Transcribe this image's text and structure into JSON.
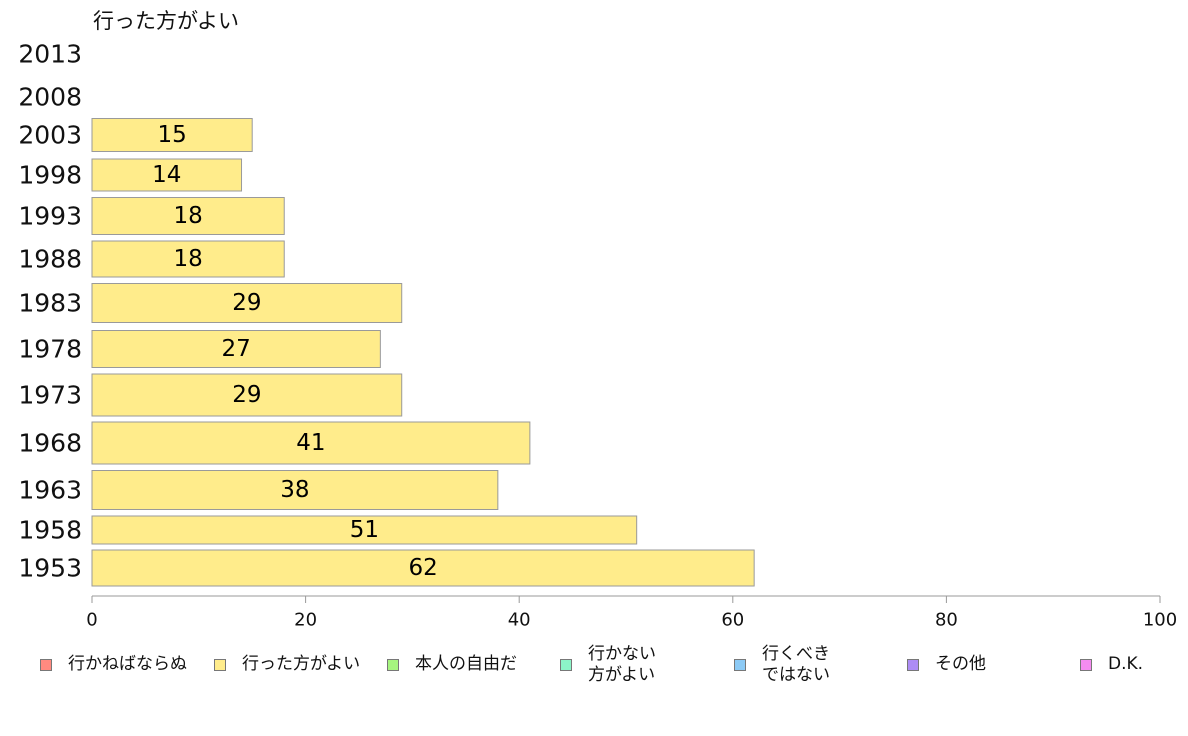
{
  "chart_data": {
    "type": "bar",
    "orientation": "horizontal",
    "series_title": "行った方がよい",
    "categories": [
      "2013",
      "2008",
      "2003",
      "1998",
      "1993",
      "1988",
      "1983",
      "1978",
      "1973",
      "1968",
      "1963",
      "1958",
      "1953"
    ],
    "series": [
      {
        "name": "行った方がよい",
        "color": "#ffec8b",
        "values": [
          null,
          null,
          15,
          14,
          18,
          18,
          29,
          27,
          29,
          41,
          38,
          51,
          62
        ],
        "value_labels": [
          "",
          "",
          "15",
          "14",
          "18",
          "18",
          "29",
          "27",
          "29",
          "41",
          "38",
          "51",
          "62"
        ]
      }
    ],
    "x_ticks": [
      "0",
      "20",
      "40",
      "60",
      "80",
      "100"
    ],
    "xlim": [
      0,
      100
    ],
    "grid": false,
    "legend_position": "bottom",
    "legend": [
      {
        "label": "行かねばならぬ",
        "color": "#ff8a80"
      },
      {
        "label": "行った方がよい",
        "color": "#ffec8b"
      },
      {
        "label": "本人の自由だ",
        "color": "#a6f57f"
      },
      {
        "label": "行かない\n方がよい",
        "color": "#8cf5c8"
      },
      {
        "label": "行くべき\nではない",
        "color": "#8ccaf5"
      },
      {
        "label": "その他",
        "color": "#ad8cf5"
      },
      {
        "label": "D.K.",
        "color": "#f58cf0"
      }
    ]
  }
}
